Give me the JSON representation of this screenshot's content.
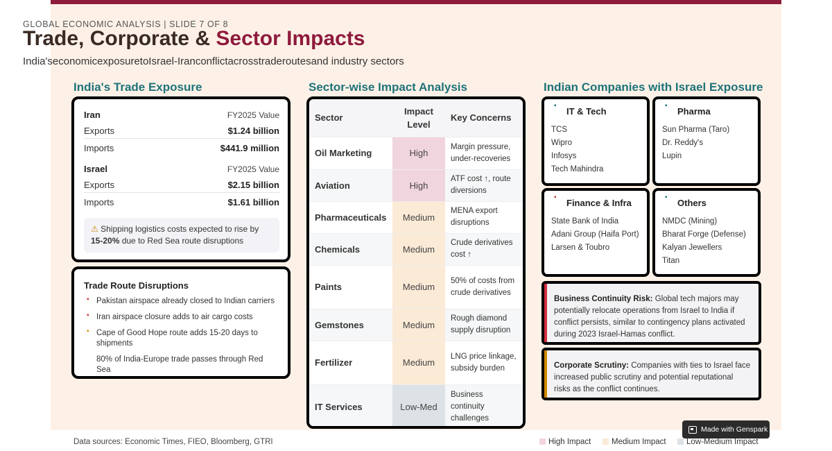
{
  "header": {
    "kicker": "GLOBAL ECONOMIC ANALYSIS | SLIDE 7 OF 8",
    "title_main": "Trade, Corporate & ",
    "title_accent": "Sector Impacts",
    "subtitle": "India'seconomicexposuretoIsrael-Iranconflictacrosstraderoutesand industry sectors"
  },
  "trade": {
    "heading": "India's Trade Exposure",
    "countries": [
      {
        "name": "Iran",
        "column": "FY2025 Value",
        "rows": [
          {
            "label": "Exports",
            "value": "$1.24 billion"
          },
          {
            "label": "Imports",
            "value": "$441.9 million"
          }
        ]
      },
      {
        "name": "Israel",
        "column": "FY2025 Value",
        "rows": [
          {
            "label": "Exports",
            "value": "$2.15 billion"
          },
          {
            "label": "Imports",
            "value": "$1.61 billion"
          }
        ]
      }
    ],
    "note_pre": "Shipping logistics costs expected to rise by ",
    "note_bold": "15-20%",
    "note_post": " due to Red Sea route disruptions",
    "note_icon": "warning-icon"
  },
  "routes": {
    "title": "Trade Route Disruptions",
    "items": [
      {
        "text": "Pakistan airspace already closed to Indian carriers",
        "color": "#c0392b"
      },
      {
        "text": "Iran airspace closure adds to air cargo costs",
        "color": "#c0392b"
      },
      {
        "text": "Cape of Good Hope route adds 15-20 days to shipments",
        "color": "#d08a00"
      },
      {
        "text": "80% of India-Europe trade passes through Red Sea",
        "color": ""
      }
    ]
  },
  "sectors": {
    "heading": "Sector-wise Impact Analysis",
    "columns": {
      "sector": "Sector",
      "level_line1": "Impact",
      "level_line2": "Level",
      "concerns": "Key Concerns"
    },
    "rows": [
      {
        "sector": "Oil Marketing",
        "level": "High",
        "concern": "Margin pressure, under-recoveries"
      },
      {
        "sector": "Aviation",
        "level": "High",
        "concern": "ATF cost ↑, route diversions"
      },
      {
        "sector": "Pharmaceuticals",
        "level": "Medium",
        "concern": "MENA export disruptions"
      },
      {
        "sector": "Chemicals",
        "level": "Medium",
        "concern": "Crude derivatives cost ↑"
      },
      {
        "sector": "Paints",
        "level": "Medium",
        "concern": "50% of costs from crude derivatives"
      },
      {
        "sector": "Gemstones",
        "level": "Medium",
        "concern": "Rough diamond supply disruption"
      },
      {
        "sector": "Fertilizer",
        "level": "Medium",
        "concern": "LNG price linkage, subsidy burden"
      },
      {
        "sector": "IT Services",
        "level": "Low-Med",
        "concern": "Business continuity challenges"
      }
    ]
  },
  "companies": {
    "heading": "Indian Companies with Israel Exposure",
    "groups": [
      {
        "title": "IT & Tech",
        "dot_color": "#1f7379",
        "items": [
          "TCS",
          "Wipro",
          "Infosys",
          "Tech Mahindra"
        ]
      },
      {
        "title": "Pharma",
        "dot_color": "#1f7379",
        "items": [
          "Sun Pharma (Taro)",
          "Dr. Reddy's",
          "Lupin"
        ]
      },
      {
        "title": "Finance & Infra",
        "dot_color": "#c0392b",
        "items": [
          "State Bank of India",
          "Adani Group (Haifa Port)",
          "Larsen & Toubro"
        ]
      },
      {
        "title": "Others",
        "dot_color": "#1f7379",
        "items": [
          "NMDC (Mining)",
          "Bharat Forge (Defense)",
          "Kalyan Jewellers",
          "Titan"
        ]
      }
    ],
    "callouts": [
      {
        "bold": "Business Continuity Risk:",
        "text": " Global tech majors may potentially relocate operations from Israel to India if conflict persists, similar to contingency plans activated during 2023 Israel-Hamas conflict.",
        "strip_color": "#d0323f"
      },
      {
        "bold": "Corporate Scrutiny:",
        "text": " Companies with ties to Israel face increased public scrutiny and potential reputational risks as the conflict continues.",
        "strip_color": "#d08a00"
      }
    ]
  },
  "footer": {
    "source": "Data sources: Economic Times, FIEO, Bloomberg, GTRI",
    "legend": [
      {
        "label": "High Impact",
        "color": "#f1d5de"
      },
      {
        "label": "Medium Impact",
        "color": "#fbead6"
      },
      {
        "label": "Low-Medium Impact",
        "color": "#dde2e6"
      }
    ],
    "badge": "Made with Genspark"
  },
  "colors": {
    "accent": "#8e1a3c",
    "teal": "#1f7379",
    "background": "#fdf1e7"
  }
}
